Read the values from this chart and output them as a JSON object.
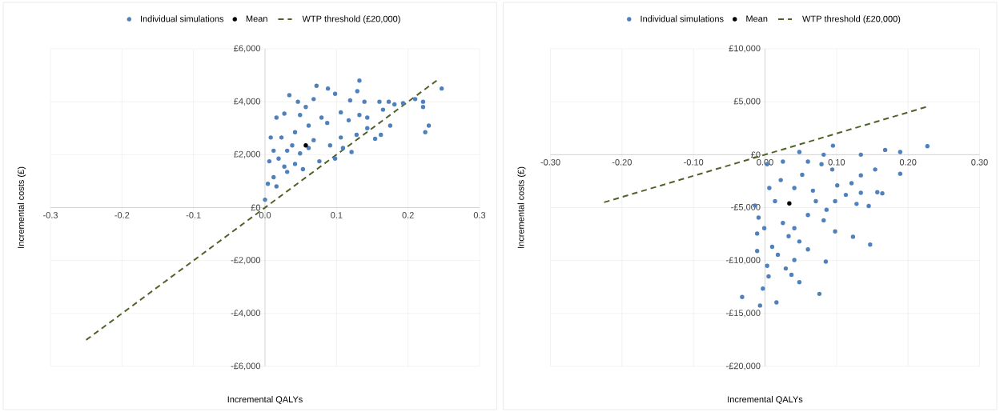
{
  "chart_data": [
    {
      "type": "scatter",
      "xlabel": "Incremental QALYs",
      "ylabel": "Incremental costs (£)",
      "grid": true,
      "legend": "top",
      "xlim": [
        -0.3,
        0.3
      ],
      "ylim": [
        -6000,
        6000
      ],
      "xticks": [
        -0.3,
        -0.2,
        -0.1,
        {
          "value": 0,
          "label": "0.0"
        },
        0.1,
        0.2,
        0.3
      ],
      "yticks": [
        {
          "value": -6000,
          "label": "-£6,000"
        },
        {
          "value": -4000,
          "label": "-£4,000"
        },
        {
          "value": -2000,
          "label": "-£2,000"
        },
        {
          "value": 0,
          "label": "£0"
        },
        {
          "value": 2000,
          "label": "£2,000"
        },
        {
          "value": 4000,
          "label": "£4,000"
        },
        {
          "value": 6000,
          "label": "£6,000"
        }
      ],
      "series": [
        {
          "name": "Individual simulations",
          "color": "#4f81bd",
          "marker": "circle",
          "x": [
            0.132,
            0.072,
            0.088,
            0.247,
            0.034,
            0.129,
            0.046,
            0.068,
            0.098,
            0.119,
            0.139,
            0.16,
            0.173,
            0.193,
            0.21,
            0.221,
            0.221,
            0.229,
            0.224,
            0.016,
            0.027,
            0.162,
            0.154,
            0.175,
            0.143,
            0.121,
            0.098,
            0.109,
            0.068,
            0.087,
            0.049,
            0.008,
            0.012,
            0.006,
            0.004,
            0.0,
            0.016,
            0.031,
            0.042,
            0.053,
            0.061,
            0.076,
            0.031,
            0.023,
            0.042,
            0.061,
            0.079,
            0.106,
            0.117,
            0.132,
            0.049,
            0.038,
            0.019,
            0.027,
            0.012,
            0.057,
            0.106,
            0.091,
            0.128,
            0.143,
            0.165,
            0.181
          ],
          "values": [
            4800,
            4600,
            4500,
            4500,
            4250,
            4400,
            4000,
            4100,
            4300,
            4050,
            4000,
            4000,
            4000,
            3950,
            4100,
            4000,
            3800,
            3100,
            2850,
            3400,
            3550,
            2750,
            2600,
            3100,
            3000,
            2100,
            1850,
            2250,
            2550,
            3200,
            3500,
            2650,
            2150,
            1750,
            900,
            300,
            800,
            1350,
            1650,
            1450,
            2250,
            1750,
            2150,
            2650,
            2850,
            3100,
            3400,
            3600,
            3300,
            3500,
            2050,
            2350,
            1850,
            1550,
            1150,
            3800,
            2650,
            2350,
            2750,
            3400,
            3700,
            3900
          ]
        },
        {
          "name": "Mean",
          "color": "#000000",
          "marker": "circle",
          "x": [
            0.057
          ],
          "values": [
            2350
          ]
        },
        {
          "name": "WTP threshold (£20,000)",
          "type": "line",
          "color": "#4f6228",
          "marker": "none",
          "line_style": "dashed",
          "x": [
            -0.25,
            0.24
          ],
          "values": [
            -5000,
            4800
          ]
        }
      ]
    },
    {
      "type": "scatter",
      "xlabel": "Incremental QALYs",
      "ylabel": "Incremental costs (£)",
      "grid": true,
      "legend": "top",
      "xlim": [
        -0.3,
        0.3
      ],
      "ylim": [
        -20000,
        10000
      ],
      "xticks": [
        {
          "value": -0.3,
          "label": "-0.30"
        },
        {
          "value": -0.2,
          "label": "-0.20"
        },
        {
          "value": -0.1,
          "label": "-0.10"
        },
        {
          "value": 0,
          "label": "0.00"
        },
        {
          "value": 0.1,
          "label": "0.10"
        },
        {
          "value": 0.2,
          "label": "0.20"
        },
        {
          "value": 0.3,
          "label": "0.30"
        }
      ],
      "yticks": [
        {
          "value": -20000,
          "label": "-£20,000"
        },
        {
          "value": -15000,
          "label": "-£15,000"
        },
        {
          "value": -10000,
          "label": "-£10,000"
        },
        {
          "value": -5000,
          "label": "-£5,000"
        },
        {
          "value": 0,
          "label": "£0"
        },
        {
          "value": 5000,
          "label": "£5,000"
        },
        {
          "value": 10000,
          "label": "£10,000"
        }
      ],
      "series": [
        {
          "name": "Individual simulations",
          "color": "#4f81bd",
          "marker": "circle",
          "x": [
            0.227,
            0.189,
            0.168,
            0.134,
            0.095,
            0.082,
            0.189,
            0.154,
            0.134,
            0.121,
            0.157,
            0.164,
            0.134,
            0.145,
            0.128,
            0.113,
            0.101,
            0.147,
            0.123,
            0.098,
            0.085,
            0.076,
            0.048,
            0.037,
            0.016,
            -0.007,
            -0.032,
            -0.003,
            0.005,
            -0.011,
            -0.011,
            -0.009,
            -0.014,
            0.029,
            0.003,
            0.025,
            0.048,
            0.06,
            0.079,
            0.094,
            0.071,
            0.086,
            0.06,
            0.041,
            0.048,
            0.018,
            0.01,
            -0.001,
            0.014,
            0.006,
            0.022,
            0.041,
            0.052,
            0.067,
            0.025,
            0.033,
            0.06,
            0.041,
            0.003,
            0.098,
            0.082
          ],
          "values": [
            800,
            250,
            450,
            0,
            850,
            0,
            -1800,
            -1400,
            -1950,
            -2700,
            -3550,
            -3650,
            -3600,
            -4850,
            -4650,
            -3800,
            -2900,
            -8500,
            -7750,
            -7250,
            -10100,
            -13150,
            -12050,
            -11350,
            -13950,
            -14250,
            -13450,
            -12650,
            -11500,
            -9100,
            -7450,
            -5950,
            -4800,
            -10750,
            -900,
            -650,
            250,
            -650,
            -900,
            -1400,
            -4400,
            -5200,
            -5700,
            -6950,
            -8200,
            -9450,
            -8700,
            -6950,
            -4400,
            -3150,
            -2400,
            -3150,
            -1900,
            -3400,
            -6450,
            -7700,
            -8950,
            -9950,
            -10500,
            -4400,
            -6200
          ]
        },
        {
          "name": "Mean",
          "color": "#000000",
          "marker": "circle",
          "x": [
            0.034
          ],
          "values": [
            -4600
          ]
        },
        {
          "name": "WTP threshold (£20,000)",
          "type": "line",
          "color": "#4f6228",
          "marker": "none",
          "line_style": "dashed",
          "x": [
            -0.225,
            0.225
          ],
          "values": [
            -4500,
            4500
          ]
        }
      ]
    }
  ]
}
